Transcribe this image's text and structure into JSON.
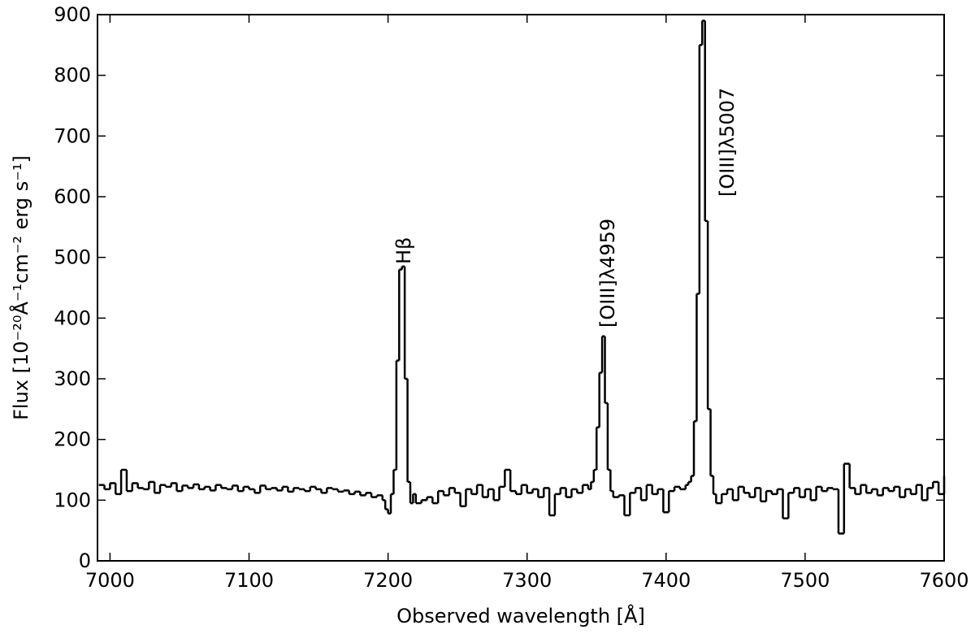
{
  "chart_data": {
    "type": "step",
    "xlabel": "Observed wavelength [Å]",
    "ylabel": "Flux [10⁻²⁰Å⁻¹cm⁻² erg s⁻¹]",
    "annotations": [
      "Hβ",
      "[OIII]λ4959",
      "[OIII]λ5007"
    ],
    "color": "#000000",
    "xlim": [
      6991,
      7600
    ],
    "xticks": [
      7000,
      7100,
      7200,
      7300,
      7400,
      7500,
      7600
    ],
    "ylim": [
      0,
      900
    ],
    "yticks": [
      0,
      100,
      200,
      300,
      400,
      500,
      600,
      700,
      800,
      900
    ],
    "x": [
      6992,
      6996,
      7000,
      7004,
      7008,
      7012,
      7016,
      7020,
      7024,
      7028,
      7032,
      7036,
      7040,
      7044,
      7048,
      7052,
      7056,
      7060,
      7064,
      7068,
      7072,
      7076,
      7080,
      7084,
      7088,
      7092,
      7096,
      7100,
      7104,
      7108,
      7112,
      7116,
      7120,
      7124,
      7128,
      7132,
      7136,
      7140,
      7144,
      7148,
      7152,
      7156,
      7160,
      7164,
      7168,
      7172,
      7176,
      7180,
      7184,
      7188,
      7192,
      7196,
      7198,
      7200,
      7202,
      7204,
      7206,
      7208,
      7210,
      7212,
      7214,
      7216,
      7218,
      7220,
      7224,
      7228,
      7232,
      7236,
      7240,
      7244,
      7248,
      7252,
      7256,
      7260,
      7264,
      7268,
      7272,
      7276,
      7280,
      7284,
      7288,
      7292,
      7296,
      7300,
      7304,
      7308,
      7312,
      7316,
      7320,
      7324,
      7328,
      7332,
      7336,
      7340,
      7344,
      7346,
      7348,
      7350,
      7352,
      7354,
      7356,
      7358,
      7360,
      7362,
      7366,
      7370,
      7374,
      7378,
      7382,
      7386,
      7390,
      7394,
      7398,
      7402,
      7406,
      7410,
      7414,
      7416,
      7418,
      7420,
      7422,
      7424,
      7426,
      7428,
      7430,
      7432,
      7434,
      7436,
      7440,
      7444,
      7448,
      7452,
      7456,
      7460,
      7464,
      7468,
      7472,
      7476,
      7480,
      7484,
      7488,
      7492,
      7496,
      7500,
      7504,
      7508,
      7512,
      7516,
      7520,
      7524,
      7528,
      7532,
      7536,
      7540,
      7544,
      7548,
      7552,
      7556,
      7560,
      7564,
      7568,
      7572,
      7576,
      7580,
      7584,
      7588,
      7592,
      7596,
      7600
    ],
    "values": [
      125,
      118,
      128,
      110,
      150,
      115,
      128,
      120,
      118,
      130,
      112,
      125,
      122,
      128,
      115,
      124,
      120,
      126,
      118,
      122,
      116,
      125,
      120,
      118,
      124,
      115,
      122,
      118,
      112,
      124,
      118,
      120,
      116,
      122,
      114,
      120,
      118,
      115,
      122,
      118,
      112,
      120,
      118,
      114,
      116,
      110,
      114,
      108,
      112,
      105,
      108,
      100,
      85,
      78,
      110,
      150,
      330,
      480,
      485,
      300,
      130,
      95,
      110,
      95,
      100,
      105,
      95,
      115,
      108,
      120,
      112,
      90,
      118,
      110,
      125,
      105,
      118,
      100,
      122,
      150,
      115,
      110,
      125,
      112,
      118,
      105,
      120,
      75,
      110,
      120,
      105,
      118,
      112,
      125,
      118,
      130,
      150,
      220,
      310,
      370,
      260,
      150,
      115,
      105,
      108,
      75,
      112,
      120,
      100,
      125,
      110,
      118,
      80,
      115,
      122,
      118,
      125,
      130,
      140,
      230,
      440,
      850,
      890,
      560,
      250,
      140,
      110,
      95,
      110,
      118,
      100,
      122,
      112,
      105,
      120,
      98,
      115,
      110,
      118,
      70,
      112,
      120,
      105,
      118,
      100,
      122,
      115,
      120,
      118,
      45,
      160,
      120,
      110,
      125,
      112,
      118,
      108,
      120,
      115,
      122,
      105,
      118,
      110,
      125,
      100,
      120,
      130,
      110,
      140
    ]
  }
}
